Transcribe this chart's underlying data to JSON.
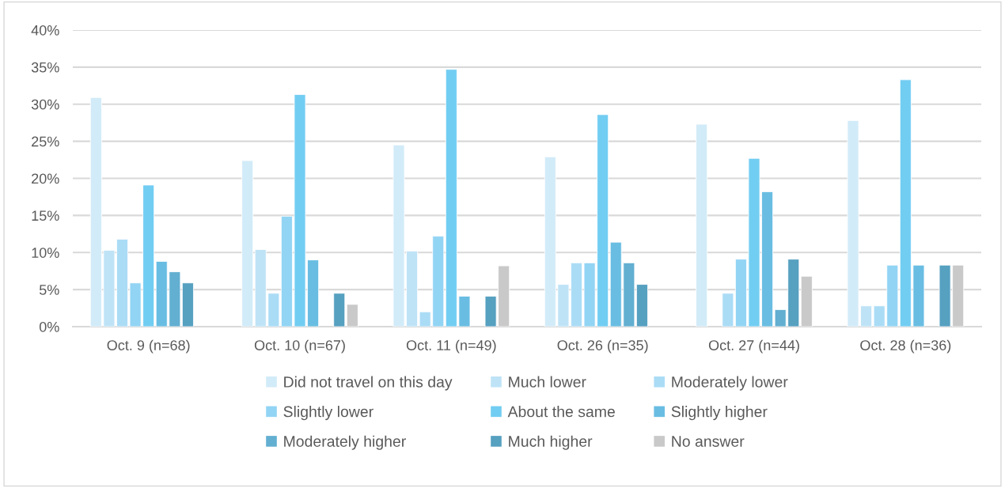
{
  "chart_data": {
    "type": "bar",
    "categories": [
      "Oct. 9 (n=68)",
      "Oct. 10 (n=67)",
      "Oct. 11 (n=49)",
      "Oct. 26 (n=35)",
      "Oct. 27 (n=44)",
      "Oct. 28 (n=36)"
    ],
    "series": [
      {
        "name": "Did not travel on this day",
        "color": "#d2ebf8",
        "values": [
          30.9,
          22.4,
          24.5,
          22.9,
          27.3,
          27.8
        ]
      },
      {
        "name": "Much lower",
        "color": "#bfe3f6",
        "values": [
          10.3,
          10.4,
          10.2,
          5.7,
          null,
          2.8
        ]
      },
      {
        "name": "Moderately lower",
        "color": "#abdcf6",
        "values": [
          11.8,
          4.5,
          2.0,
          8.6,
          4.5,
          2.8
        ]
      },
      {
        "name": "Slightly lower",
        "color": "#92d4f4",
        "values": [
          5.9,
          14.9,
          12.2,
          8.6,
          9.1,
          8.3
        ]
      },
      {
        "name": "About the same",
        "color": "#72cdf2",
        "values": [
          19.1,
          31.3,
          34.7,
          28.6,
          22.7,
          33.3
        ]
      },
      {
        "name": "Slightly higher",
        "color": "#69bde2",
        "values": [
          8.8,
          9.0,
          4.1,
          11.4,
          18.2,
          8.3
        ]
      },
      {
        "name": "Moderately higher",
        "color": "#62afd1",
        "values": [
          7.4,
          null,
          null,
          8.6,
          2.3,
          null
        ]
      },
      {
        "name": "Much higher",
        "color": "#56a0c0",
        "values": [
          5.9,
          4.5,
          4.1,
          5.7,
          9.1,
          8.3
        ]
      },
      {
        "name": "No answer",
        "color": "#c9c9c9",
        "values": [
          null,
          3.0,
          8.2,
          null,
          6.8,
          8.3
        ]
      }
    ],
    "ylim": [
      0,
      40
    ],
    "yticks": [
      {
        "value": 0,
        "label": "0%"
      },
      {
        "value": 5,
        "label": "5%"
      },
      {
        "value": 10,
        "label": "10%"
      },
      {
        "value": 15,
        "label": "15%"
      },
      {
        "value": 20,
        "label": "20%"
      },
      {
        "value": 25,
        "label": "25%"
      },
      {
        "value": 30,
        "label": "30%"
      },
      {
        "value": 35,
        "label": "35%"
      },
      {
        "value": 40,
        "label": "40%"
      }
    ],
    "grid": "y",
    "legend": "bottom"
  }
}
